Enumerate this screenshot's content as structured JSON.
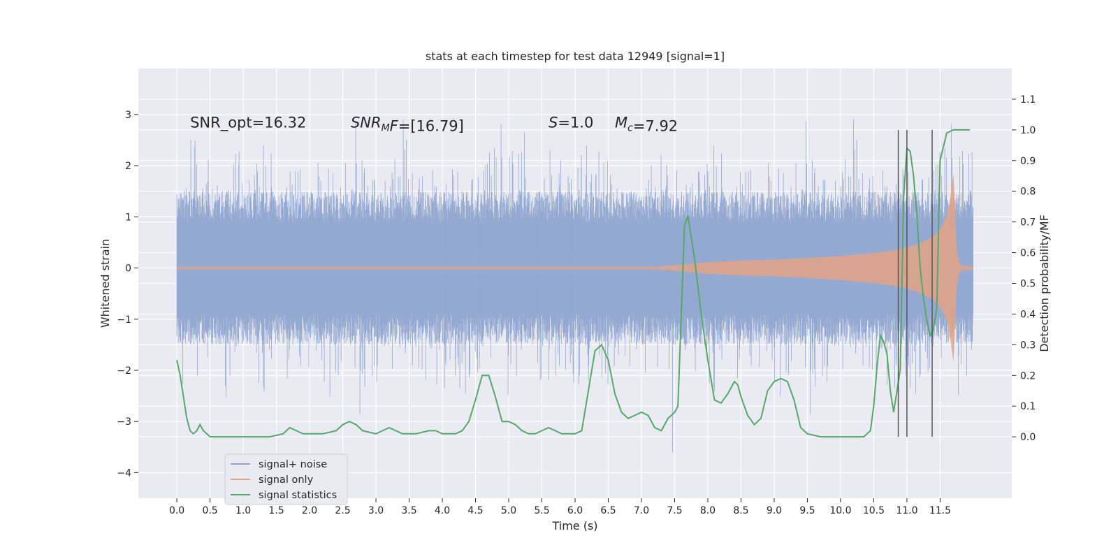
{
  "chart_data": {
    "type": "line",
    "title": "stats at each timestep for test data 12949 [signal=1]",
    "xlabel": "Time (s)",
    "ylabel": "Whitened strain",
    "y2label": "Detection probability/MF",
    "xlim": [
      -0.58,
      12.58
    ],
    "ylim": [
      -4.5,
      3.9
    ],
    "y2lim": [
      -0.2,
      1.2
    ],
    "x_ticks": [
      0.0,
      0.5,
      1.0,
      1.5,
      2.0,
      2.5,
      3.0,
      3.5,
      4.0,
      4.5,
      5.0,
      5.5,
      6.0,
      6.5,
      7.0,
      7.5,
      8.0,
      8.5,
      9.0,
      9.5,
      10.0,
      10.5,
      11.0,
      11.5
    ],
    "y_ticks": [
      -4,
      -3,
      -2,
      -1,
      0,
      1,
      2,
      3
    ],
    "y2_ticks": [
      0.0,
      0.1,
      0.2,
      0.3,
      0.4,
      0.5,
      0.6,
      0.7,
      0.8,
      0.9,
      1.0,
      1.1
    ],
    "grid": true,
    "legend": "lower-left",
    "annotations": [
      {
        "prefix": "SNR_opt=16.32",
        "x": 0.2,
        "y": 2.8
      },
      {
        "italic": "SNR",
        "sub": "M",
        "italic2": "F",
        "rest": "=[16.79]",
        "x": 2.62,
        "y": 2.8
      },
      {
        "italic": "S",
        "rest": "=1.0",
        "x": 5.6,
        "y": 2.8
      },
      {
        "italic": "M",
        "sub": "c",
        "rest": "=7.92",
        "x": 6.6,
        "y": 2.8
      }
    ],
    "vlines": [
      {
        "x": 10.87,
        "y2_range": [
          0.0,
          1.0
        ]
      },
      {
        "x": 11.0,
        "y2_range": [
          0.0,
          1.0
        ]
      },
      {
        "x": 11.38,
        "y2_range": [
          0.0,
          1.0
        ]
      }
    ],
    "series": [
      {
        "name": "signal+ noise",
        "color": "#8fa5cf",
        "axis": "left",
        "x_range": [
          0.0,
          12.0
        ],
        "note_envelope_y": [
          -2.3,
          2.6
        ]
      },
      {
        "name": "signal only",
        "color": "#e3a486",
        "axis": "left",
        "envelope_x": [
          0.0,
          7.2,
          7.6,
          8.0,
          8.5,
          9.0,
          9.5,
          10.0,
          10.5,
          10.8,
          11.0,
          11.2,
          11.4,
          11.5,
          11.6,
          11.65,
          11.7,
          11.72,
          11.75,
          11.8,
          12.0
        ],
        "envelope_amp": [
          0.02,
          0.02,
          0.06,
          0.11,
          0.14,
          0.16,
          0.19,
          0.23,
          0.29,
          0.34,
          0.4,
          0.48,
          0.62,
          0.75,
          1.0,
          1.3,
          1.8,
          1.2,
          0.3,
          0.05,
          0.02
        ]
      },
      {
        "name": "signal statistics",
        "color": "#55a868",
        "axis": "right",
        "x": [
          0.0,
          0.05,
          0.1,
          0.15,
          0.2,
          0.25,
          0.3,
          0.35,
          0.4,
          0.5,
          0.6,
          0.8,
          1.0,
          1.2,
          1.4,
          1.6,
          1.7,
          1.8,
          1.9,
          2.0,
          2.2,
          2.4,
          2.5,
          2.6,
          2.7,
          2.8,
          3.0,
          3.1,
          3.2,
          3.3,
          3.4,
          3.6,
          3.8,
          3.9,
          4.0,
          4.2,
          4.3,
          4.4,
          4.5,
          4.6,
          4.7,
          4.8,
          4.9,
          5.0,
          5.1,
          5.2,
          5.3,
          5.4,
          5.5,
          5.6,
          5.7,
          5.8,
          5.9,
          6.0,
          6.1,
          6.2,
          6.3,
          6.4,
          6.5,
          6.6,
          6.7,
          6.8,
          6.9,
          7.0,
          7.1,
          7.2,
          7.3,
          7.4,
          7.5,
          7.55,
          7.6,
          7.65,
          7.7,
          7.8,
          7.9,
          8.0,
          8.1,
          8.2,
          8.3,
          8.4,
          8.45,
          8.5,
          8.6,
          8.7,
          8.8,
          8.9,
          9.0,
          9.1,
          9.2,
          9.3,
          9.4,
          9.5,
          9.7,
          9.9,
          10.1,
          10.2,
          10.3,
          10.35,
          10.4,
          10.45,
          10.5,
          10.55,
          10.6,
          10.65,
          10.7,
          10.75,
          10.8,
          10.85,
          10.9,
          10.95,
          11.0,
          11.05,
          11.1,
          11.15,
          11.2,
          11.25,
          11.3,
          11.35,
          11.4,
          11.45,
          11.5,
          11.6,
          11.7,
          11.8,
          11.9,
          11.95
        ],
        "y": [
          0.25,
          0.2,
          0.13,
          0.06,
          0.02,
          0.01,
          0.02,
          0.04,
          0.02,
          0.0,
          0.0,
          0.0,
          0.0,
          0.0,
          0.0,
          0.01,
          0.03,
          0.02,
          0.01,
          0.01,
          0.01,
          0.02,
          0.04,
          0.05,
          0.04,
          0.02,
          0.01,
          0.02,
          0.03,
          0.02,
          0.01,
          0.01,
          0.02,
          0.02,
          0.01,
          0.01,
          0.02,
          0.05,
          0.12,
          0.2,
          0.2,
          0.13,
          0.05,
          0.05,
          0.04,
          0.02,
          0.01,
          0.01,
          0.02,
          0.03,
          0.02,
          0.01,
          0.01,
          0.01,
          0.02,
          0.15,
          0.28,
          0.3,
          0.25,
          0.14,
          0.08,
          0.06,
          0.07,
          0.08,
          0.07,
          0.03,
          0.02,
          0.06,
          0.08,
          0.1,
          0.4,
          0.69,
          0.72,
          0.58,
          0.4,
          0.25,
          0.12,
          0.11,
          0.14,
          0.18,
          0.17,
          0.13,
          0.07,
          0.04,
          0.06,
          0.15,
          0.18,
          0.19,
          0.18,
          0.12,
          0.03,
          0.01,
          0.0,
          0.0,
          0.0,
          0.0,
          0.0,
          0.0,
          0.01,
          0.02,
          0.1,
          0.23,
          0.33,
          0.31,
          0.27,
          0.15,
          0.08,
          0.15,
          0.22,
          0.78,
          0.94,
          0.93,
          0.85,
          0.72,
          0.55,
          0.45,
          0.38,
          0.33,
          0.35,
          0.42,
          0.9,
          0.99,
          1.0,
          1.0,
          1.0,
          1.0
        ]
      }
    ]
  }
}
